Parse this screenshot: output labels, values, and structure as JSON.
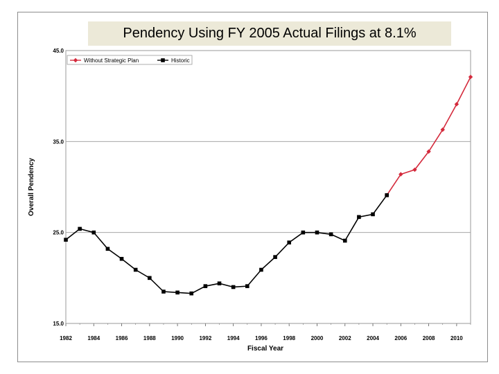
{
  "chart_data": {
    "type": "line",
    "title": "Pendency Using FY 2005 Actual Filings at 8.1%",
    "xlabel": "Fiscal Year",
    "ylabel": "Overall Pendency",
    "ylim": [
      15.0,
      45.0
    ],
    "xlim": [
      1982,
      2011
    ],
    "y_ticks": [
      "15.0",
      "25.0",
      "35.0",
      "45.0"
    ],
    "x_ticks": [
      "1982",
      "1984",
      "1986",
      "1988",
      "1990",
      "1992",
      "1994",
      "1996",
      "1998",
      "2000",
      "2002",
      "2004",
      "2006",
      "2008",
      "2010"
    ],
    "grid": true,
    "legend": "top-left",
    "series": [
      {
        "name": "Historic",
        "color": "#000000",
        "marker": "square",
        "x": [
          1982,
          1983,
          1984,
          1985,
          1986,
          1987,
          1988,
          1989,
          1990,
          1991,
          1992,
          1993,
          1994,
          1995,
          1996,
          1997,
          1998,
          1999,
          2000,
          2001,
          2002,
          2003,
          2004,
          2005
        ],
        "values": [
          24.2,
          25.4,
          25.0,
          23.2,
          22.1,
          20.9,
          20.0,
          18.5,
          18.4,
          18.3,
          19.1,
          19.4,
          19.0,
          19.1,
          20.9,
          22.3,
          23.9,
          25.0,
          25.0,
          24.8,
          24.1,
          26.7,
          27.0,
          29.1
        ]
      },
      {
        "name": "Without Strategic Plan",
        "color": "#d42a3c",
        "marker": "diamond",
        "x": [
          2005,
          2006,
          2007,
          2008,
          2009,
          2010,
          2011
        ],
        "values": [
          29.1,
          31.4,
          31.9,
          33.9,
          36.3,
          39.1,
          42.1
        ]
      }
    ]
  }
}
